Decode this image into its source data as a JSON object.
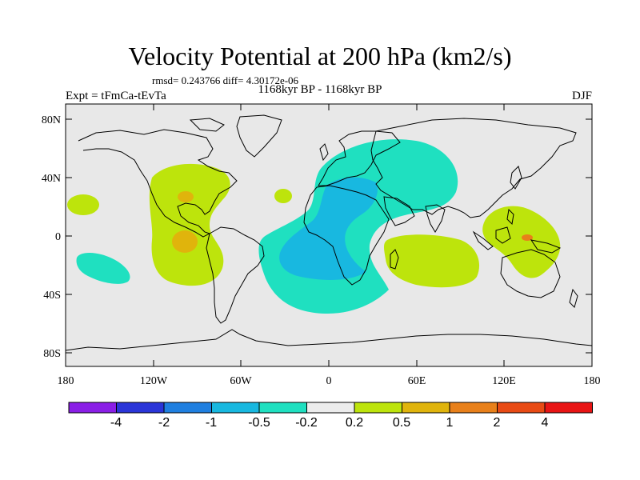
{
  "title": "Velocity Potential at 200 hPa (km2/s)",
  "stats": "rmsd= 0.243766 diff= 4.30172e-06",
  "left_label": "Expt = tFmCa-tEvTa",
  "center_label": "1168kyr BP - 1168kyr BP",
  "right_label": "DJF",
  "x_ticks": [
    "180",
    "120W",
    "60W",
    "0",
    "60E",
    "120E",
    "180"
  ],
  "y_ticks": [
    "80N",
    "40N",
    "0",
    "40S",
    "80S"
  ],
  "colorbar": {
    "colors": [
      "#8a1ee6",
      "#2a35d8",
      "#1f7fe0",
      "#18b8e0",
      "#1fe0c0",
      "#ececec",
      "#bde40c",
      "#e0b40c",
      "#e8801a",
      "#e84a14",
      "#e81414"
    ],
    "labels": [
      "-4",
      "-2",
      "-1",
      "-0.5",
      "-0.2",
      "0.2",
      "0.5",
      "1",
      "2",
      "4"
    ]
  },
  "colors": {
    "ocean_background": "#e8e8e8",
    "positive_light": "#bde40c",
    "positive_mid": "#e0b40c",
    "positive_strong": "#e8801a",
    "negative_light": "#1fe0c0",
    "negative_mid": "#18b8e0"
  }
}
